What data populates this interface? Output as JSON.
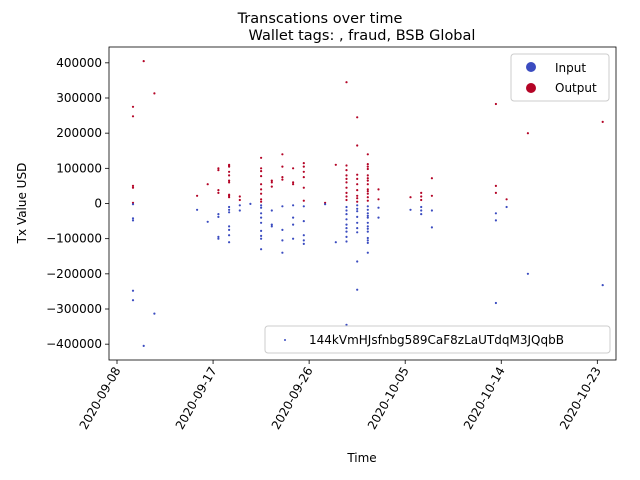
{
  "chart_data": {
    "type": "scatter",
    "title": "Transcations over time",
    "subtitle": "Wallet tags: , fraud, BSB Global",
    "xlabel": "Time",
    "ylabel": "Tx Value USD",
    "x_ticks": [
      "2020-09-08",
      "2020-09-17",
      "2020-09-26",
      "2020-10-05",
      "2020-10-14",
      "2020-10-23"
    ],
    "y_ticks": [
      400000,
      300000,
      200000,
      100000,
      0,
      -100000,
      -200000,
      -300000,
      -400000
    ],
    "y_tick_labels": [
      "400000",
      "300000",
      "200000",
      "100000",
      "0",
      "−100000",
      "−200000",
      "−300000",
      "−400000"
    ],
    "xlim": [
      "2020-09-08",
      "2020-10-24"
    ],
    "ylim": [
      -445000,
      445000
    ],
    "grid": false,
    "colors": {
      "input": "#3b4cc0",
      "output": "#b40426"
    },
    "legend_type": {
      "placement": "top-right",
      "entries": [
        {
          "label": "Input",
          "color": "#3b4cc0"
        },
        {
          "label": "Output",
          "color": "#b40426"
        }
      ]
    },
    "legend_wallet": {
      "placement": "bottom-right",
      "entries": [
        {
          "label": "144kVmHJsfnbg589CaF8zLaUTdqM3JQqbB"
        }
      ]
    },
    "series": [
      {
        "name": "Output",
        "color": "#b40426",
        "points": [
          [
            "2020-09-09",
            275000
          ],
          [
            "2020-09-09",
            248000
          ],
          [
            "2020-09-09",
            50000
          ],
          [
            "2020-09-09",
            45000
          ],
          [
            "2020-09-09",
            2000
          ],
          [
            "2020-09-10",
            405000
          ],
          [
            "2020-09-11",
            313000
          ],
          [
            "2020-09-15",
            22000
          ],
          [
            "2020-09-16",
            55000
          ],
          [
            "2020-09-17",
            100000
          ],
          [
            "2020-09-17",
            95000
          ],
          [
            "2020-09-17",
            38000
          ],
          [
            "2020-09-17",
            30000
          ],
          [
            "2020-09-18",
            110000
          ],
          [
            "2020-09-18",
            108000
          ],
          [
            "2020-09-18",
            90000
          ],
          [
            "2020-09-18",
            65000
          ],
          [
            "2020-09-18",
            25000
          ],
          [
            "2020-09-18",
            18000
          ],
          [
            "2020-09-18",
            105000
          ],
          [
            "2020-09-18",
            80000
          ],
          [
            "2020-09-18",
            60000
          ],
          [
            "2020-09-18",
            22000
          ],
          [
            "2020-09-19",
            20000
          ],
          [
            "2020-09-19",
            10000
          ],
          [
            "2020-09-21",
            130000
          ],
          [
            "2020-09-21",
            100000
          ],
          [
            "2020-09-21",
            92000
          ],
          [
            "2020-09-21",
            78000
          ],
          [
            "2020-09-21",
            55000
          ],
          [
            "2020-09-21",
            40000
          ],
          [
            "2020-09-21",
            28000
          ],
          [
            "2020-09-21",
            12000
          ],
          [
            "2020-09-21",
            5000
          ],
          [
            "2020-09-22",
            65000
          ],
          [
            "2020-09-22",
            60000
          ],
          [
            "2020-09-22",
            48000
          ],
          [
            "2020-09-23",
            140000
          ],
          [
            "2020-09-23",
            105000
          ],
          [
            "2020-09-23",
            75000
          ],
          [
            "2020-09-23",
            68000
          ],
          [
            "2020-09-24",
            100000
          ],
          [
            "2020-09-24",
            60000
          ],
          [
            "2020-09-24",
            55000
          ],
          [
            "2020-09-25",
            115000
          ],
          [
            "2020-09-25",
            105000
          ],
          [
            "2020-09-25",
            90000
          ],
          [
            "2020-09-25",
            75000
          ],
          [
            "2020-09-25",
            45000
          ],
          [
            "2020-09-25",
            8000
          ],
          [
            "2020-09-27",
            2000
          ],
          [
            "2020-09-28",
            110000
          ],
          [
            "2020-09-29",
            345000
          ],
          [
            "2020-09-29",
            108000
          ],
          [
            "2020-09-29",
            95000
          ],
          [
            "2020-09-29",
            80000
          ],
          [
            "2020-09-29",
            70000
          ],
          [
            "2020-09-29",
            60000
          ],
          [
            "2020-09-29",
            45000
          ],
          [
            "2020-09-29",
            30000
          ],
          [
            "2020-09-29",
            20000
          ],
          [
            "2020-09-29",
            10000
          ],
          [
            "2020-09-30",
            245000
          ],
          [
            "2020-09-30",
            165000
          ],
          [
            "2020-09-30",
            82000
          ],
          [
            "2020-09-30",
            70000
          ],
          [
            "2020-09-30",
            55000
          ],
          [
            "2020-09-30",
            38000
          ],
          [
            "2020-09-30",
            22000
          ],
          [
            "2020-09-30",
            15000
          ],
          [
            "2020-09-30",
            5000
          ],
          [
            "2020-10-01",
            112000
          ],
          [
            "2020-10-01",
            105000
          ],
          [
            "2020-10-01",
            98000
          ],
          [
            "2020-10-01",
            80000
          ],
          [
            "2020-10-01",
            72000
          ],
          [
            "2020-10-01",
            55000
          ],
          [
            "2020-10-01",
            40000
          ],
          [
            "2020-10-01",
            28000
          ],
          [
            "2020-10-01",
            18000
          ],
          [
            "2020-10-01",
            8000
          ],
          [
            "2020-10-01",
            140000
          ],
          [
            "2020-10-01",
            65000
          ],
          [
            "2020-10-01",
            35000
          ],
          [
            "2020-10-02",
            40000
          ],
          [
            "2020-10-02",
            12000
          ],
          [
            "2020-10-05",
            18000
          ],
          [
            "2020-10-06",
            30000
          ],
          [
            "2020-10-06",
            20000
          ],
          [
            "2020-10-06",
            10000
          ],
          [
            "2020-10-07",
            72000
          ],
          [
            "2020-10-07",
            22000
          ],
          [
            "2020-10-13",
            283000
          ],
          [
            "2020-10-13",
            50000
          ],
          [
            "2020-10-13",
            30000
          ],
          [
            "2020-10-14",
            12000
          ],
          [
            "2020-10-16",
            200000
          ],
          [
            "2020-10-23",
            232000
          ]
        ]
      },
      {
        "name": "Input",
        "color": "#3b4cc0",
        "points": [
          [
            "2020-09-09",
            -275000
          ],
          [
            "2020-09-09",
            -248000
          ],
          [
            "2020-09-09",
            -48000
          ],
          [
            "2020-09-09",
            -42000
          ],
          [
            "2020-09-09",
            -2000
          ],
          [
            "2020-09-10",
            -405000
          ],
          [
            "2020-09-11",
            -313000
          ],
          [
            "2020-09-15",
            -18000
          ],
          [
            "2020-09-16",
            -52000
          ],
          [
            "2020-09-17",
            -100000
          ],
          [
            "2020-09-17",
            -95000
          ],
          [
            "2020-09-17",
            -38000
          ],
          [
            "2020-09-17",
            -30000
          ],
          [
            "2020-09-18",
            -110000
          ],
          [
            "2020-09-18",
            -90000
          ],
          [
            "2020-09-18",
            -65000
          ],
          [
            "2020-09-18",
            -25000
          ],
          [
            "2020-09-18",
            -18000
          ],
          [
            "2020-09-18",
            -75000
          ],
          [
            "2020-09-18",
            -10000
          ],
          [
            "2020-09-19",
            -20000
          ],
          [
            "2020-09-19",
            -5000
          ],
          [
            "2020-09-20",
            -1000
          ],
          [
            "2020-09-21",
            -130000
          ],
          [
            "2020-09-21",
            -100000
          ],
          [
            "2020-09-21",
            -92000
          ],
          [
            "2020-09-21",
            -78000
          ],
          [
            "2020-09-21",
            -55000
          ],
          [
            "2020-09-21",
            -40000
          ],
          [
            "2020-09-21",
            -28000
          ],
          [
            "2020-09-21",
            -12000
          ],
          [
            "2020-09-21",
            -5000
          ],
          [
            "2020-09-22",
            -65000
          ],
          [
            "2020-09-22",
            -60000
          ],
          [
            "2020-09-22",
            -20000
          ],
          [
            "2020-09-23",
            -140000
          ],
          [
            "2020-09-23",
            -105000
          ],
          [
            "2020-09-23",
            -75000
          ],
          [
            "2020-09-23",
            -8000
          ],
          [
            "2020-09-24",
            -100000
          ],
          [
            "2020-09-24",
            -60000
          ],
          [
            "2020-09-24",
            -40000
          ],
          [
            "2020-09-24",
            -5000
          ],
          [
            "2020-09-25",
            -115000
          ],
          [
            "2020-09-25",
            -105000
          ],
          [
            "2020-09-25",
            -90000
          ],
          [
            "2020-09-25",
            -50000
          ],
          [
            "2020-09-25",
            -8000
          ],
          [
            "2020-09-27",
            -2000
          ],
          [
            "2020-09-28",
            -110000
          ],
          [
            "2020-09-29",
            -345000
          ],
          [
            "2020-09-29",
            -108000
          ],
          [
            "2020-09-29",
            -95000
          ],
          [
            "2020-09-29",
            -80000
          ],
          [
            "2020-09-29",
            -70000
          ],
          [
            "2020-09-29",
            -60000
          ],
          [
            "2020-09-29",
            -45000
          ],
          [
            "2020-09-29",
            -30000
          ],
          [
            "2020-09-29",
            -20000
          ],
          [
            "2020-09-29",
            -10000
          ],
          [
            "2020-09-30",
            -245000
          ],
          [
            "2020-09-30",
            -165000
          ],
          [
            "2020-09-30",
            -82000
          ],
          [
            "2020-09-30",
            -70000
          ],
          [
            "2020-09-30",
            -55000
          ],
          [
            "2020-09-30",
            -38000
          ],
          [
            "2020-09-30",
            -22000
          ],
          [
            "2020-09-30",
            -15000
          ],
          [
            "2020-09-30",
            -5000
          ],
          [
            "2020-10-01",
            -112000
          ],
          [
            "2020-10-01",
            -105000
          ],
          [
            "2020-10-01",
            -98000
          ],
          [
            "2020-10-01",
            -80000
          ],
          [
            "2020-10-01",
            -72000
          ],
          [
            "2020-10-01",
            -55000
          ],
          [
            "2020-10-01",
            -40000
          ],
          [
            "2020-10-01",
            -28000
          ],
          [
            "2020-10-01",
            -18000
          ],
          [
            "2020-10-01",
            -8000
          ],
          [
            "2020-10-01",
            -140000
          ],
          [
            "2020-10-01",
            -65000
          ],
          [
            "2020-10-01",
            -35000
          ],
          [
            "2020-10-02",
            -40000
          ],
          [
            "2020-10-02",
            -12000
          ],
          [
            "2020-10-05",
            -18000
          ],
          [
            "2020-10-06",
            -30000
          ],
          [
            "2020-10-06",
            -20000
          ],
          [
            "2020-10-06",
            -10000
          ],
          [
            "2020-10-07",
            -68000
          ],
          [
            "2020-10-07",
            -20000
          ],
          [
            "2020-10-13",
            -283000
          ],
          [
            "2020-10-13",
            -48000
          ],
          [
            "2020-10-13",
            -28000
          ],
          [
            "2020-10-14",
            -10000
          ],
          [
            "2020-10-16",
            -200000
          ],
          [
            "2020-10-23",
            -232000
          ]
        ]
      }
    ]
  }
}
